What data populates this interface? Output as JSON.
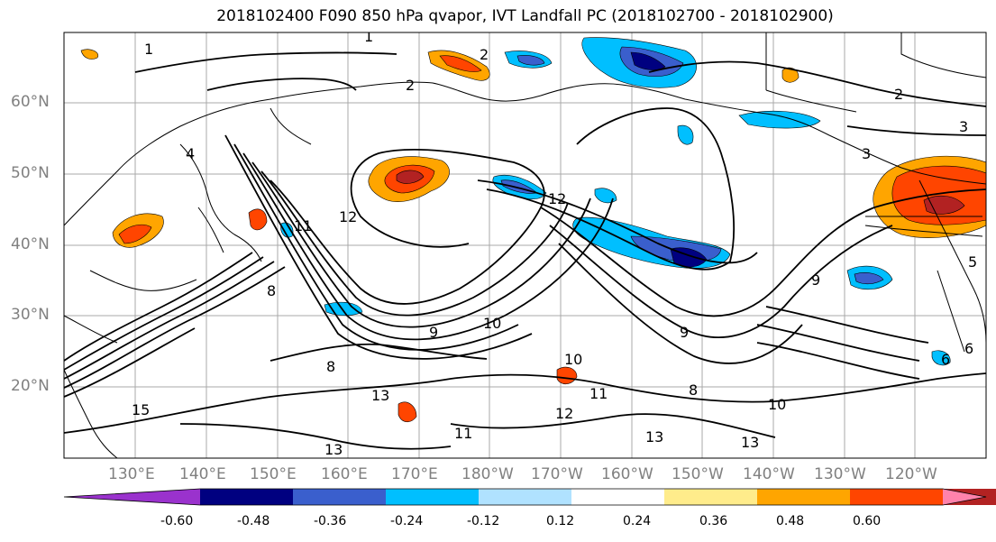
{
  "title": "2018102400 F090 850 hPa qvapor, IVT Landfall PC (2018102700 - 2018102900)",
  "lat_labels": [
    "60°N",
    "50°N",
    "40°N",
    "30°N",
    "20°N"
  ],
  "lon_labels": [
    "130°E",
    "140°E",
    "150°E",
    "160°E",
    "170°E",
    "180°W",
    "170°W",
    "160°W",
    "150°W",
    "140°W",
    "130°W",
    "120°W"
  ],
  "colorbar": {
    "colors": [
      "#9a32cd",
      "#000080",
      "#3a5fcd",
      "#00bfff",
      "#b0e2ff",
      "#ffffff",
      "#ffec8b",
      "#ffa500",
      "#ff4500",
      "#b22222",
      "#ff82ab"
    ],
    "ticks": [
      "-0.60",
      "-0.48",
      "-0.36",
      "-0.24",
      "-0.12",
      "0.12",
      "0.24",
      "0.36",
      "0.48",
      "0.60"
    ]
  },
  "contour_labels": [
    "1",
    "1",
    "2",
    "3",
    "4",
    "12",
    "12",
    "2",
    "2",
    "3",
    "5",
    "6",
    "6",
    "8",
    "9",
    "9",
    "9",
    "10",
    "10",
    "10",
    "11",
    "11",
    "12",
    "13",
    "13",
    "13",
    "13",
    "15",
    "8",
    "8",
    "11"
  ]
}
